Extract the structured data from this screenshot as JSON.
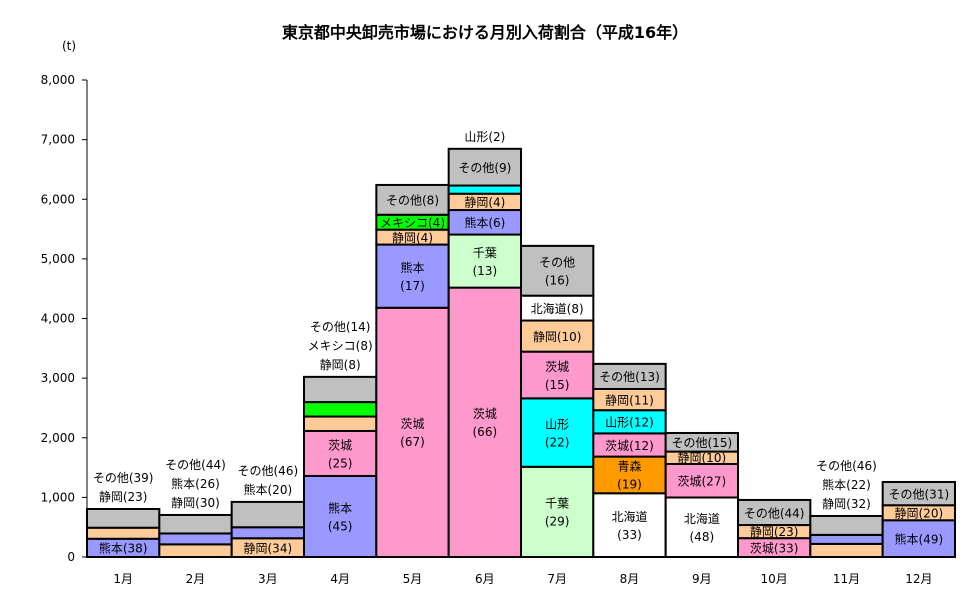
{
  "chart_data": {
    "type": "bar",
    "stacked": true,
    "title": "東京都中央卸売市場における月別入荷割合（平成16年）",
    "ylabel": "(t)",
    "ylim": [
      0,
      8000
    ],
    "yticks": [
      "0",
      "1,000",
      "2,000",
      "3,000",
      "4,000",
      "5,000",
      "6,000",
      "7,000",
      "8,000"
    ],
    "colors": {
      "熊本": "#9999FF",
      "静岡": "#FFCC99",
      "その他": "#C0C0C0",
      "茨城": "#FF99CC",
      "メキシコ": "#00FF00",
      "千葉": "#CCFFCC",
      "山形": "#00FFFF",
      "北海道": "#FFFFFF",
      "青森": "#FF9900"
    },
    "categories": [
      "1月",
      "2月",
      "3月",
      "4月",
      "5月",
      "6月",
      "7月",
      "8月",
      "9月",
      "10月",
      "11月",
      "12月"
    ],
    "bars": [
      [
        {
          "s": "熊本",
          "v": 306,
          "label": "熊本(38)",
          "pos": "in"
        },
        {
          "s": "静岡",
          "v": 185,
          "label": "静岡(23)",
          "pos": "out"
        },
        {
          "s": "その他",
          "v": 314,
          "label": "その他(39)",
          "pos": "out"
        }
      ],
      [
        {
          "s": "静岡",
          "v": 212,
          "label": "静岡(30)",
          "pos": "out"
        },
        {
          "s": "熊本",
          "v": 183,
          "label": "熊本(26)",
          "pos": "out"
        },
        {
          "s": "その他",
          "v": 310,
          "label": "その他(44)",
          "pos": "out"
        }
      ],
      [
        {
          "s": "静岡",
          "v": 314,
          "label": "静岡(34)",
          "pos": "in"
        },
        {
          "s": "熊本",
          "v": 185,
          "label": "熊本(20)",
          "pos": "out"
        },
        {
          "s": "その他",
          "v": 425,
          "label": "その他(46)",
          "pos": "out"
        }
      ],
      [
        {
          "s": "熊本",
          "v": 1359,
          "label": "熊本|(45)",
          "pos": "in"
        },
        {
          "s": "茨城",
          "v": 755,
          "label": "茨城|(25)",
          "pos": "in"
        },
        {
          "s": "静岡",
          "v": 242,
          "label": "静岡(8)",
          "pos": "out"
        },
        {
          "s": "メキシコ",
          "v": 242,
          "label": "メキシコ(8)",
          "pos": "out"
        },
        {
          "s": "その他",
          "v": 423,
          "label": "その他(14)",
          "pos": "out"
        }
      ],
      [
        {
          "s": "茨城",
          "v": 4180,
          "label": "茨城|(67)",
          "pos": "in"
        },
        {
          "s": "熊本",
          "v": 1060,
          "label": "熊本|(17)",
          "pos": "in"
        },
        {
          "s": "静岡",
          "v": 250,
          "label": "静岡(4)",
          "pos": "in"
        },
        {
          "s": "メキシコ",
          "v": 250,
          "label": "メキシコ(4)",
          "pos": "in"
        },
        {
          "s": "その他",
          "v": 500,
          "label": "その他(8)",
          "pos": "in"
        }
      ],
      [
        {
          "s": "茨城",
          "v": 4518,
          "label": "茨城|(66)",
          "pos": "in"
        },
        {
          "s": "千葉",
          "v": 890,
          "label": "千葉|(13)",
          "pos": "in"
        },
        {
          "s": "熊本",
          "v": 411,
          "label": "熊本(6)",
          "pos": "in"
        },
        {
          "s": "静岡",
          "v": 274,
          "label": "静岡(4)",
          "pos": "in"
        },
        {
          "s": "山形",
          "v": 137,
          "label": "山形(2)",
          "pos": "out"
        },
        {
          "s": "その他",
          "v": 616,
          "label": "その他(9)",
          "pos": "in"
        }
      ],
      [
        {
          "s": "千葉",
          "v": 1513,
          "label": "千葉|(29)",
          "pos": "in"
        },
        {
          "s": "山形",
          "v": 1148,
          "label": "山形|(22)",
          "pos": "in"
        },
        {
          "s": "茨城",
          "v": 783,
          "label": "茨城|(15)",
          "pos": "in"
        },
        {
          "s": "静岡",
          "v": 522,
          "label": "静岡(10)",
          "pos": "in"
        },
        {
          "s": "北海道",
          "v": 417,
          "label": "北海道(8)",
          "pos": "in"
        },
        {
          "s": "その他",
          "v": 835,
          "label": "その他|(16)",
          "pos": "in"
        }
      ],
      [
        {
          "s": "北海道",
          "v": 1069,
          "label": "北海道|(33)",
          "pos": "in"
        },
        {
          "s": "青森",
          "v": 615,
          "label": "青森|(19)",
          "pos": "in"
        },
        {
          "s": "茨城",
          "v": 389,
          "label": "茨城(12)",
          "pos": "in"
        },
        {
          "s": "山形",
          "v": 389,
          "label": "山形(12)",
          "pos": "in"
        },
        {
          "s": "静岡",
          "v": 356,
          "label": "静岡(11)",
          "pos": "in"
        },
        {
          "s": "その他",
          "v": 421,
          "label": "その他(13)",
          "pos": "in"
        }
      ],
      [
        {
          "s": "北海道",
          "v": 998,
          "label": "北海道|(48)",
          "pos": "in"
        },
        {
          "s": "茨城",
          "v": 562,
          "label": "茨城(27)",
          "pos": "in"
        },
        {
          "s": "静岡",
          "v": 208,
          "label": "静岡(10)",
          "pos": "in"
        },
        {
          "s": "その他",
          "v": 312,
          "label": "その他(15)",
          "pos": "in"
        }
      ],
      [
        {
          "s": "茨城",
          "v": 316,
          "label": "茨城(33)",
          "pos": "in"
        },
        {
          "s": "静岡",
          "v": 220,
          "label": "静岡(23)",
          "pos": "in"
        },
        {
          "s": "その他",
          "v": 421,
          "label": "その他(44)",
          "pos": "in"
        }
      ],
      [
        {
          "s": "静岡",
          "v": 220,
          "label": "静岡(32)",
          "pos": "out"
        },
        {
          "s": "熊本",
          "v": 151,
          "label": "熊本(22)",
          "pos": "out"
        },
        {
          "s": "その他",
          "v": 317,
          "label": "その他(46)",
          "pos": "out"
        }
      ],
      [
        {
          "s": "熊本",
          "v": 616,
          "label": "熊本(49)",
          "pos": "in"
        },
        {
          "s": "静岡",
          "v": 252,
          "label": "静岡(20)",
          "pos": "in"
        },
        {
          "s": "その他",
          "v": 390,
          "label": "その他(31)",
          "pos": "in"
        }
      ]
    ]
  }
}
